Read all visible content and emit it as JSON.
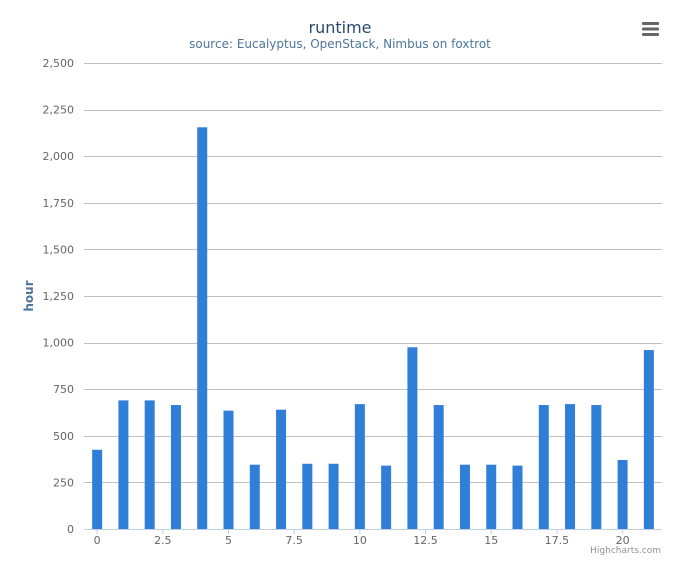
{
  "chart_data": {
    "type": "bar",
    "title": "runtime",
    "subtitle": "source: Eucalyptus, OpenStack, Nimbus on foxtrot",
    "xlabel": "",
    "ylabel": "hour",
    "x": [
      0,
      1,
      2,
      3,
      4,
      5,
      6,
      7,
      8,
      9,
      10,
      11,
      12,
      13,
      14,
      15,
      16,
      17,
      18,
      19,
      20,
      21
    ],
    "values": [
      425,
      690,
      690,
      665,
      2155,
      635,
      345,
      640,
      350,
      350,
      670,
      340,
      975,
      665,
      345,
      345,
      340,
      665,
      670,
      665,
      370,
      960
    ],
    "xlim": [
      -0.5,
      21.5
    ],
    "ylim": [
      0,
      2500
    ],
    "yticks": [
      0,
      250,
      500,
      750,
      1000,
      1250,
      1500,
      1750,
      2000,
      2250,
      2500
    ],
    "ytick_labels": [
      "0",
      "250",
      "500",
      "750",
      "1,000",
      "1,250",
      "1,500",
      "1,750",
      "2,000",
      "2,250",
      "2,500"
    ],
    "xticks": [
      0,
      2.5,
      5,
      7.5,
      10,
      12.5,
      15,
      17.5,
      20
    ],
    "xtick_labels": [
      "0",
      "2.5",
      "5",
      "7.5",
      "10",
      "12.5",
      "15",
      "17.5",
      "20"
    ],
    "grid": true,
    "bar_color": "#2f7ed8"
  },
  "credits": "Highcharts.com",
  "colors": {
    "title": "#274b6d",
    "subtitle": "#4d759e",
    "axis_label": "#4d759e",
    "tick_label": "#666666",
    "grid": "#c0c0c0",
    "axis_line": "#c0d0e0",
    "menu": "#666666",
    "credits": "#909090"
  },
  "icons": {
    "menu": "hamburger-menu-icon"
  }
}
